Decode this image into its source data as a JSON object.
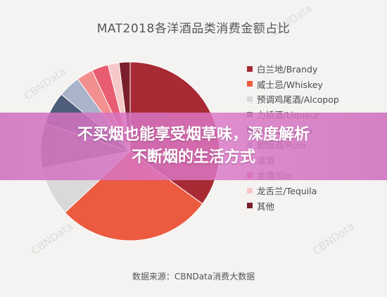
{
  "chart_data": {
    "type": "pie",
    "title": "MAT2018各洋酒品类消费金额占比",
    "legend_position": "right",
    "slices": [
      {
        "label": "白兰地/Brandy",
        "value": 35,
        "color": "#a82a34"
      },
      {
        "label": "威士忌/Whiskey",
        "value": 28,
        "color": "#ec5b40"
      },
      {
        "label": "预调鸡尾酒/Alcopop",
        "value": 9,
        "color": "#d9d9d9"
      },
      {
        "label": "力娇酒/Liqueur",
        "value": 8,
        "color": "#7f7f7f"
      },
      {
        "label": "伏特加/Vodka",
        "value": 6,
        "color": "#4e5d79"
      },
      {
        "label": "朗姆酒/Rum",
        "value": 4,
        "color": "#a9b3c9"
      },
      {
        "label": "清酒",
        "value": 3,
        "color": "#f28f8f"
      },
      {
        "label": "金酒/Gin",
        "value": 3,
        "color": "#e85d72"
      },
      {
        "label": "龙舌兰/Tequila",
        "value": 2,
        "color": "#f7c8c8"
      },
      {
        "label": "其他",
        "value": 2,
        "color": "#7a1f2b"
      }
    ]
  },
  "banner": {
    "line1": "不买烟也能享受烟草味，深度解析",
    "line2": "不断烟的生活方式"
  },
  "source": "数据来源：CBNData消费大数据",
  "watermark_text": "CBNData"
}
